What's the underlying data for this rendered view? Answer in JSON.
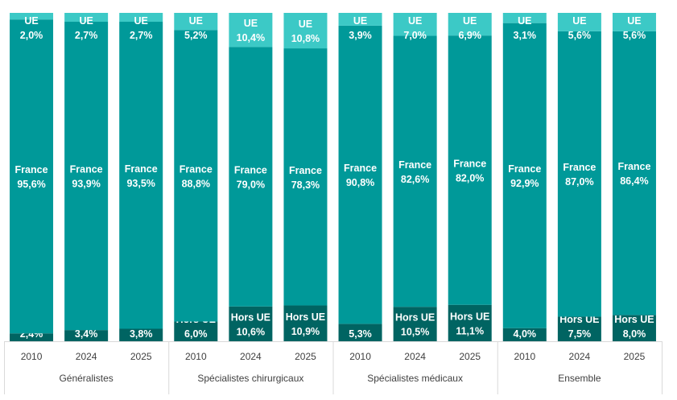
{
  "chart_data": {
    "type": "bar",
    "stacking": "percent",
    "orientation": "vertical",
    "groups": [
      {
        "name": "Généralistes",
        "categories": [
          "2010",
          "2024",
          "2025"
        ]
      },
      {
        "name": "Spécialistes chirurgicaux",
        "categories": [
          "2010",
          "2024",
          "2025"
        ]
      },
      {
        "name": "Spécialistes médicaux",
        "categories": [
          "2010",
          "2024",
          "2025"
        ]
      },
      {
        "name": "Ensemble",
        "categories": [
          "2010",
          "2024",
          "2025"
        ]
      }
    ],
    "series": [
      {
        "name": "Hors UE",
        "color": "#006462",
        "values": [
          2.4,
          3.4,
          3.8,
          6.0,
          10.6,
          10.9,
          5.3,
          10.5,
          11.1,
          4.0,
          7.5,
          8.0
        ],
        "labels": [
          "2,4%",
          "3,4%",
          "3,8%",
          "6,0%",
          "10,6%",
          "10,9%",
          "5,3%",
          "10,5%",
          "11,1%",
          "4,0%",
          "7,5%",
          "8,0%"
        ]
      },
      {
        "name": "France",
        "color": "#009999",
        "values": [
          95.6,
          93.9,
          93.5,
          88.8,
          79.0,
          78.3,
          90.8,
          82.6,
          82.0,
          92.9,
          87.0,
          86.4
        ],
        "labels": [
          "95,6%",
          "93,9%",
          "93,5%",
          "88,8%",
          "79,0%",
          "78,3%",
          "90,8%",
          "82,6%",
          "82,0%",
          "92,9%",
          "87,0%",
          "86,4%"
        ]
      },
      {
        "name": "UE",
        "color": "#3CC9C6",
        "values": [
          2.0,
          2.7,
          2.7,
          5.2,
          10.4,
          10.8,
          3.9,
          7.0,
          6.9,
          3.1,
          5.6,
          5.6
        ],
        "labels": [
          "2,0%",
          "2,7%",
          "2,7%",
          "5,2%",
          "10,4%",
          "10,8%",
          "3,9%",
          "7,0%",
          "6,9%",
          "3,1%",
          "5,6%",
          "5,6%"
        ]
      }
    ],
    "ylim": [
      0,
      100
    ],
    "grid": false,
    "legend": "none",
    "data_labels": "inside-segments"
  }
}
